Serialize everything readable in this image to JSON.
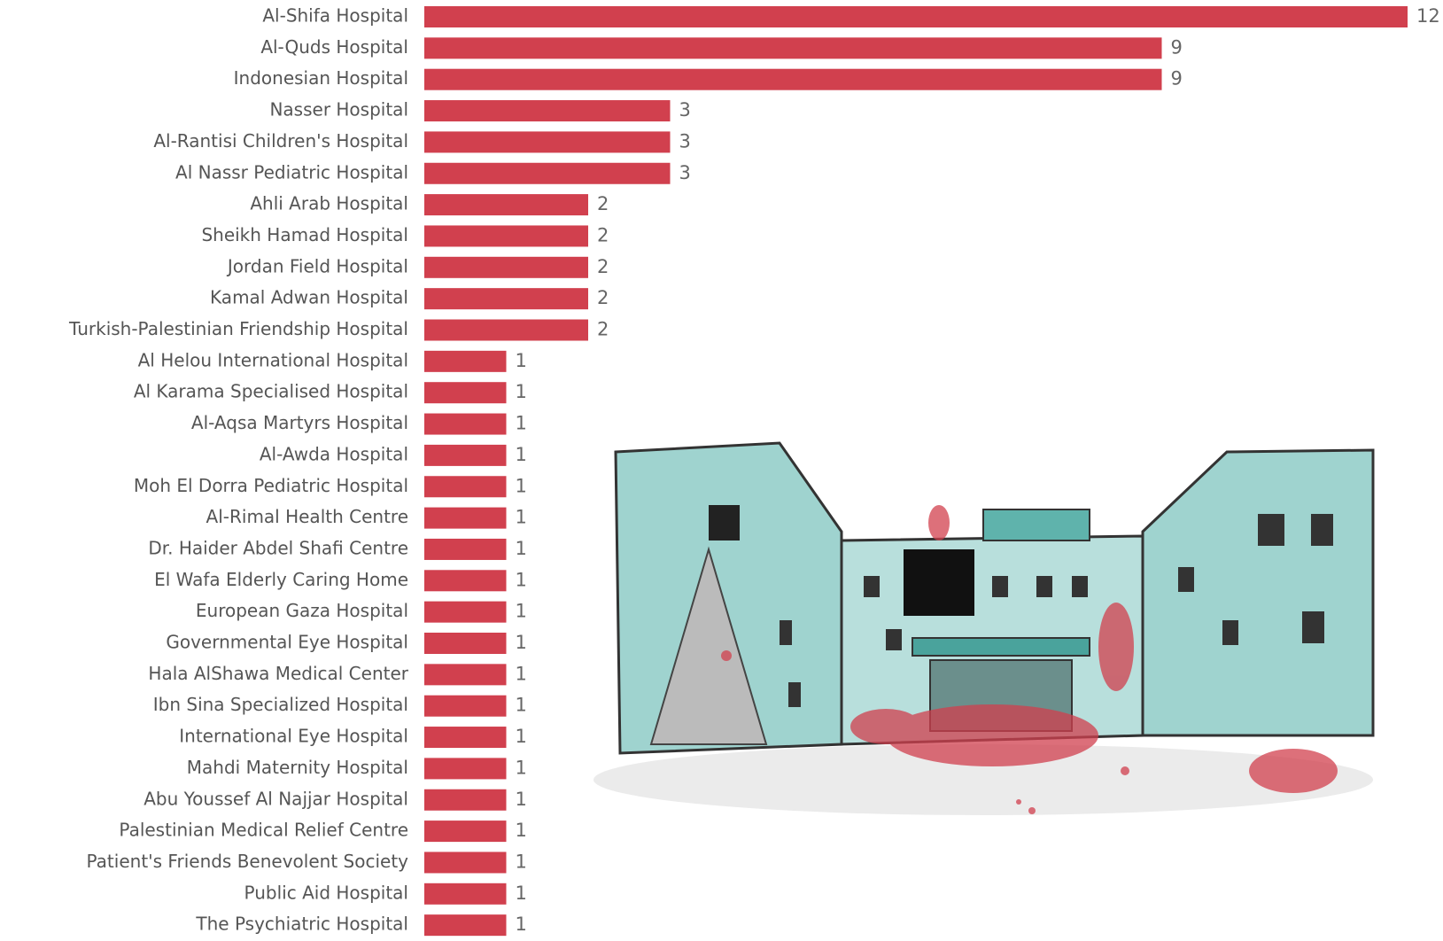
{
  "chart_data": {
    "type": "bar",
    "orientation": "horizontal",
    "color": "#d1404e",
    "categories": [
      "Al-Shifa Hospital",
      "Al-Quds Hospital",
      "Indonesian Hospital",
      "Nasser Hospital",
      "Al-Rantisi Children's Hospital",
      "Al Nassr Pediatric Hospital",
      "Ahli Arab Hospital",
      "Sheikh Hamad Hospital",
      "Jordan Field Hospital",
      "Kamal Adwan Hospital",
      "Turkish-Palestinian Friendship Hospital",
      "Al Helou International Hospital",
      "Al Karama Specialised Hospital",
      "Al-Aqsa Martyrs Hospital",
      "Al-Awda Hospital",
      "Moh El Dorra Pediatric Hospital",
      "Al-Rimal Health Centre",
      "Dr. Haider Abdel Shafi Centre",
      "El Wafa Elderly Caring Home",
      "European Gaza Hospital",
      "Governmental Eye Hospital",
      "Hala AlShawa Medical Center",
      "Ibn Sina Specialized Hospital",
      "International Eye Hospital",
      "Mahdi Maternity Hospital",
      "Abu Youssef Al Najjar Hospital",
      "Palestinian Medical Relief Centre",
      "Patient's Friends Benevolent Society",
      "Public Aid Hospital",
      "The Psychiatric Hospital"
    ],
    "values": [
      12,
      9,
      9,
      3,
      3,
      3,
      2,
      2,
      2,
      2,
      2,
      1,
      1,
      1,
      1,
      1,
      1,
      1,
      1,
      1,
      1,
      1,
      1,
      1,
      1,
      1,
      1,
      1,
      1,
      1
    ]
  }
}
